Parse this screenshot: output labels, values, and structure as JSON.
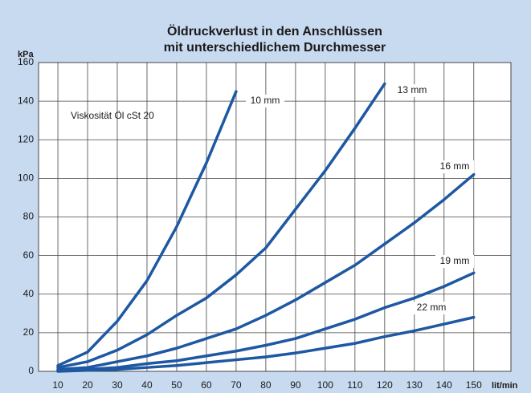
{
  "chart_data": {
    "type": "line",
    "title": [
      "Öldruckverlust in den Anschlüssen",
      "mit unterschiedlichem Durchmesser"
    ],
    "y_label": "kPa",
    "x_label": "lit/min",
    "annotation": "Viskosität Öl cSt 20",
    "x": [
      10,
      20,
      30,
      40,
      50,
      60,
      70,
      80,
      90,
      100,
      110,
      120,
      130,
      140,
      150
    ],
    "series": [
      {
        "name": "10 mm",
        "color": "#1e58a3",
        "values": [
          3,
          10,
          26,
          47,
          75,
          108,
          145,
          null,
          null,
          null,
          null,
          null,
          null,
          null,
          null
        ]
      },
      {
        "name": "13 mm",
        "color": "#1e58a3",
        "values": [
          2,
          5,
          11,
          19,
          29,
          38,
          50,
          64,
          84,
          104,
          126,
          149,
          null,
          null,
          null
        ]
      },
      {
        "name": "16 mm",
        "color": "#1e58a3",
        "values": [
          1,
          2,
          5,
          8,
          12,
          17,
          22,
          29,
          37,
          46,
          55,
          66,
          77,
          89,
          102
        ]
      },
      {
        "name": "19 mm",
        "color": "#1e58a3",
        "values": [
          0.5,
          1,
          2,
          4,
          5.5,
          8,
          10.5,
          13.5,
          17,
          22,
          27,
          33,
          38,
          44,
          51
        ]
      },
      {
        "name": "22 mm",
        "color": "#1e58a3",
        "values": [
          0,
          0.5,
          1,
          2,
          3,
          4.5,
          6,
          7.5,
          9.5,
          12,
          14.5,
          18,
          21,
          24.5,
          28
        ]
      }
    ],
    "xlim": [
      3.5,
      162.5
    ],
    "ylim": [
      0,
      160
    ],
    "xticks": [
      10,
      20,
      30,
      40,
      50,
      60,
      70,
      80,
      90,
      100,
      110,
      120,
      130,
      140,
      150
    ],
    "yticks": [
      0,
      20,
      40,
      60,
      80,
      100,
      120,
      140,
      160
    ],
    "grid": true
  }
}
